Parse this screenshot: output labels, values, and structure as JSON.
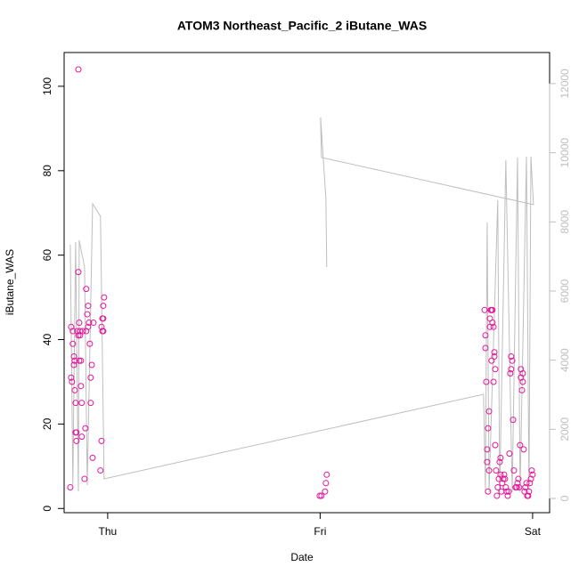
{
  "chart_data": {
    "type": "scatter",
    "title": "ATOM3 Northeast_Pacific_2 iButane_WAS",
    "x_label": "Date",
    "y_label": "iButane_WAS",
    "xlim": [
      -0.205,
      2.08
    ],
    "xticks": [
      {
        "value": 0,
        "label": "Thu"
      },
      {
        "value": 1,
        "label": "Fri"
      },
      {
        "value": 2,
        "label": "Sat"
      }
    ],
    "ylim": [
      -1,
      108
    ],
    "yticks": [
      0,
      20,
      40,
      60,
      80,
      100
    ],
    "y2lim": [
      -412,
      12900
    ],
    "y2ticks": [
      0,
      2000,
      4000,
      6000,
      8000,
      10000,
      12000
    ],
    "series": [
      {
        "type": "scatter",
        "color": "#e6179b",
        "x": [
          -0.176,
          -0.172,
          -0.172,
          -0.168,
          -0.164,
          -0.164,
          -0.159,
          -0.159,
          -0.155,
          -0.155,
          -0.151,
          -0.151,
          -0.147,
          -0.147,
          -0.143,
          -0.138,
          -0.138,
          -0.138,
          -0.134,
          -0.134,
          -0.13,
          -0.13,
          -0.126,
          -0.126,
          -0.122,
          -0.122,
          -0.117,
          -0.109,
          -0.105,
          -0.101,
          -0.101,
          -0.096,
          -0.092,
          -0.092,
          -0.088,
          -0.084,
          -0.08,
          -0.08,
          -0.075,
          -0.071,
          -0.067,
          -0.034,
          -0.029,
          -0.029,
          -0.025,
          -0.025,
          -0.021,
          -0.021,
          -0.017,
          -0.021,
          0.998,
          1.006,
          1.023,
          1.027,
          1.031,
          1.774,
          1.778,
          1.778,
          1.782,
          1.786,
          1.786,
          1.79,
          1.79,
          1.795,
          1.795,
          1.799,
          1.799,
          1.803,
          1.807,
          1.807,
          1.811,
          1.811,
          1.816,
          1.816,
          1.82,
          1.82,
          1.824,
          1.824,
          1.828,
          1.832,
          1.836,
          1.841,
          1.845,
          1.849,
          1.849,
          1.853,
          1.857,
          1.862,
          1.866,
          1.87,
          1.874,
          1.878,
          1.883,
          1.887,
          1.891,
          1.895,
          1.899,
          1.899,
          1.904,
          1.908,
          1.912,
          1.92,
          1.925,
          1.929,
          1.933,
          1.937,
          1.941,
          1.945,
          1.945,
          1.95,
          1.954,
          1.954,
          1.958,
          1.962,
          1.966,
          1.971,
          1.975,
          1.979,
          1.983,
          1.987,
          1.992,
          1.996,
          2.0
        ],
        "values": [
          5,
          31,
          43,
          30,
          42,
          39,
          34,
          36,
          35,
          28,
          25,
          18,
          18,
          16,
          42,
          41,
          56,
          104,
          44,
          35,
          42,
          41,
          29,
          35,
          25,
          17,
          42,
          7,
          19,
          52,
          42,
          46,
          48,
          43,
          44,
          39,
          25,
          31,
          34,
          12,
          44,
          9,
          16,
          43,
          42,
          45,
          45,
          48,
          50,
          42,
          3,
          3,
          4,
          6,
          8,
          47,
          41,
          38,
          30,
          14,
          11,
          4,
          19,
          9,
          23,
          43,
          45,
          47,
          35,
          47,
          47,
          44,
          43,
          30,
          36,
          37,
          33,
          15,
          9,
          3,
          5,
          7,
          11,
          12,
          8,
          4,
          6,
          7,
          8,
          7,
          5,
          4,
          3,
          4,
          13,
          32,
          33,
          36,
          35,
          21,
          9,
          5,
          5,
          6,
          7,
          5,
          15,
          33,
          31,
          28,
          32,
          30,
          14,
          4,
          5,
          6,
          3,
          3,
          4,
          6,
          7,
          9,
          8
        ]
      },
      {
        "type": "line",
        "axis": "y2",
        "color": "#bebebe",
        "x": [
          -0.176,
          -0.164,
          -0.151,
          -0.138,
          -0.134,
          -0.109,
          -0.096,
          -0.071,
          -0.034,
          -0.017,
          1.769,
          1.778,
          1.786,
          1.795,
          1.836,
          1.845,
          1.874,
          1.904,
          1.929,
          1.941,
          1.971,
          1.983,
          1.992,
          2.004,
          1.006,
          1.002,
          1.027,
          1.031
        ],
        "values": [
          7340,
          386,
          7417,
          206,
          7468,
          6696,
          386,
          8524,
          8164,
          567,
          3013,
          258,
          7983,
          180,
          8627,
          180,
          9786,
          180,
          9864,
          180,
          9889,
          180,
          9889,
          8499,
          9864,
          11022,
          8679,
          6696
        ]
      }
    ]
  }
}
